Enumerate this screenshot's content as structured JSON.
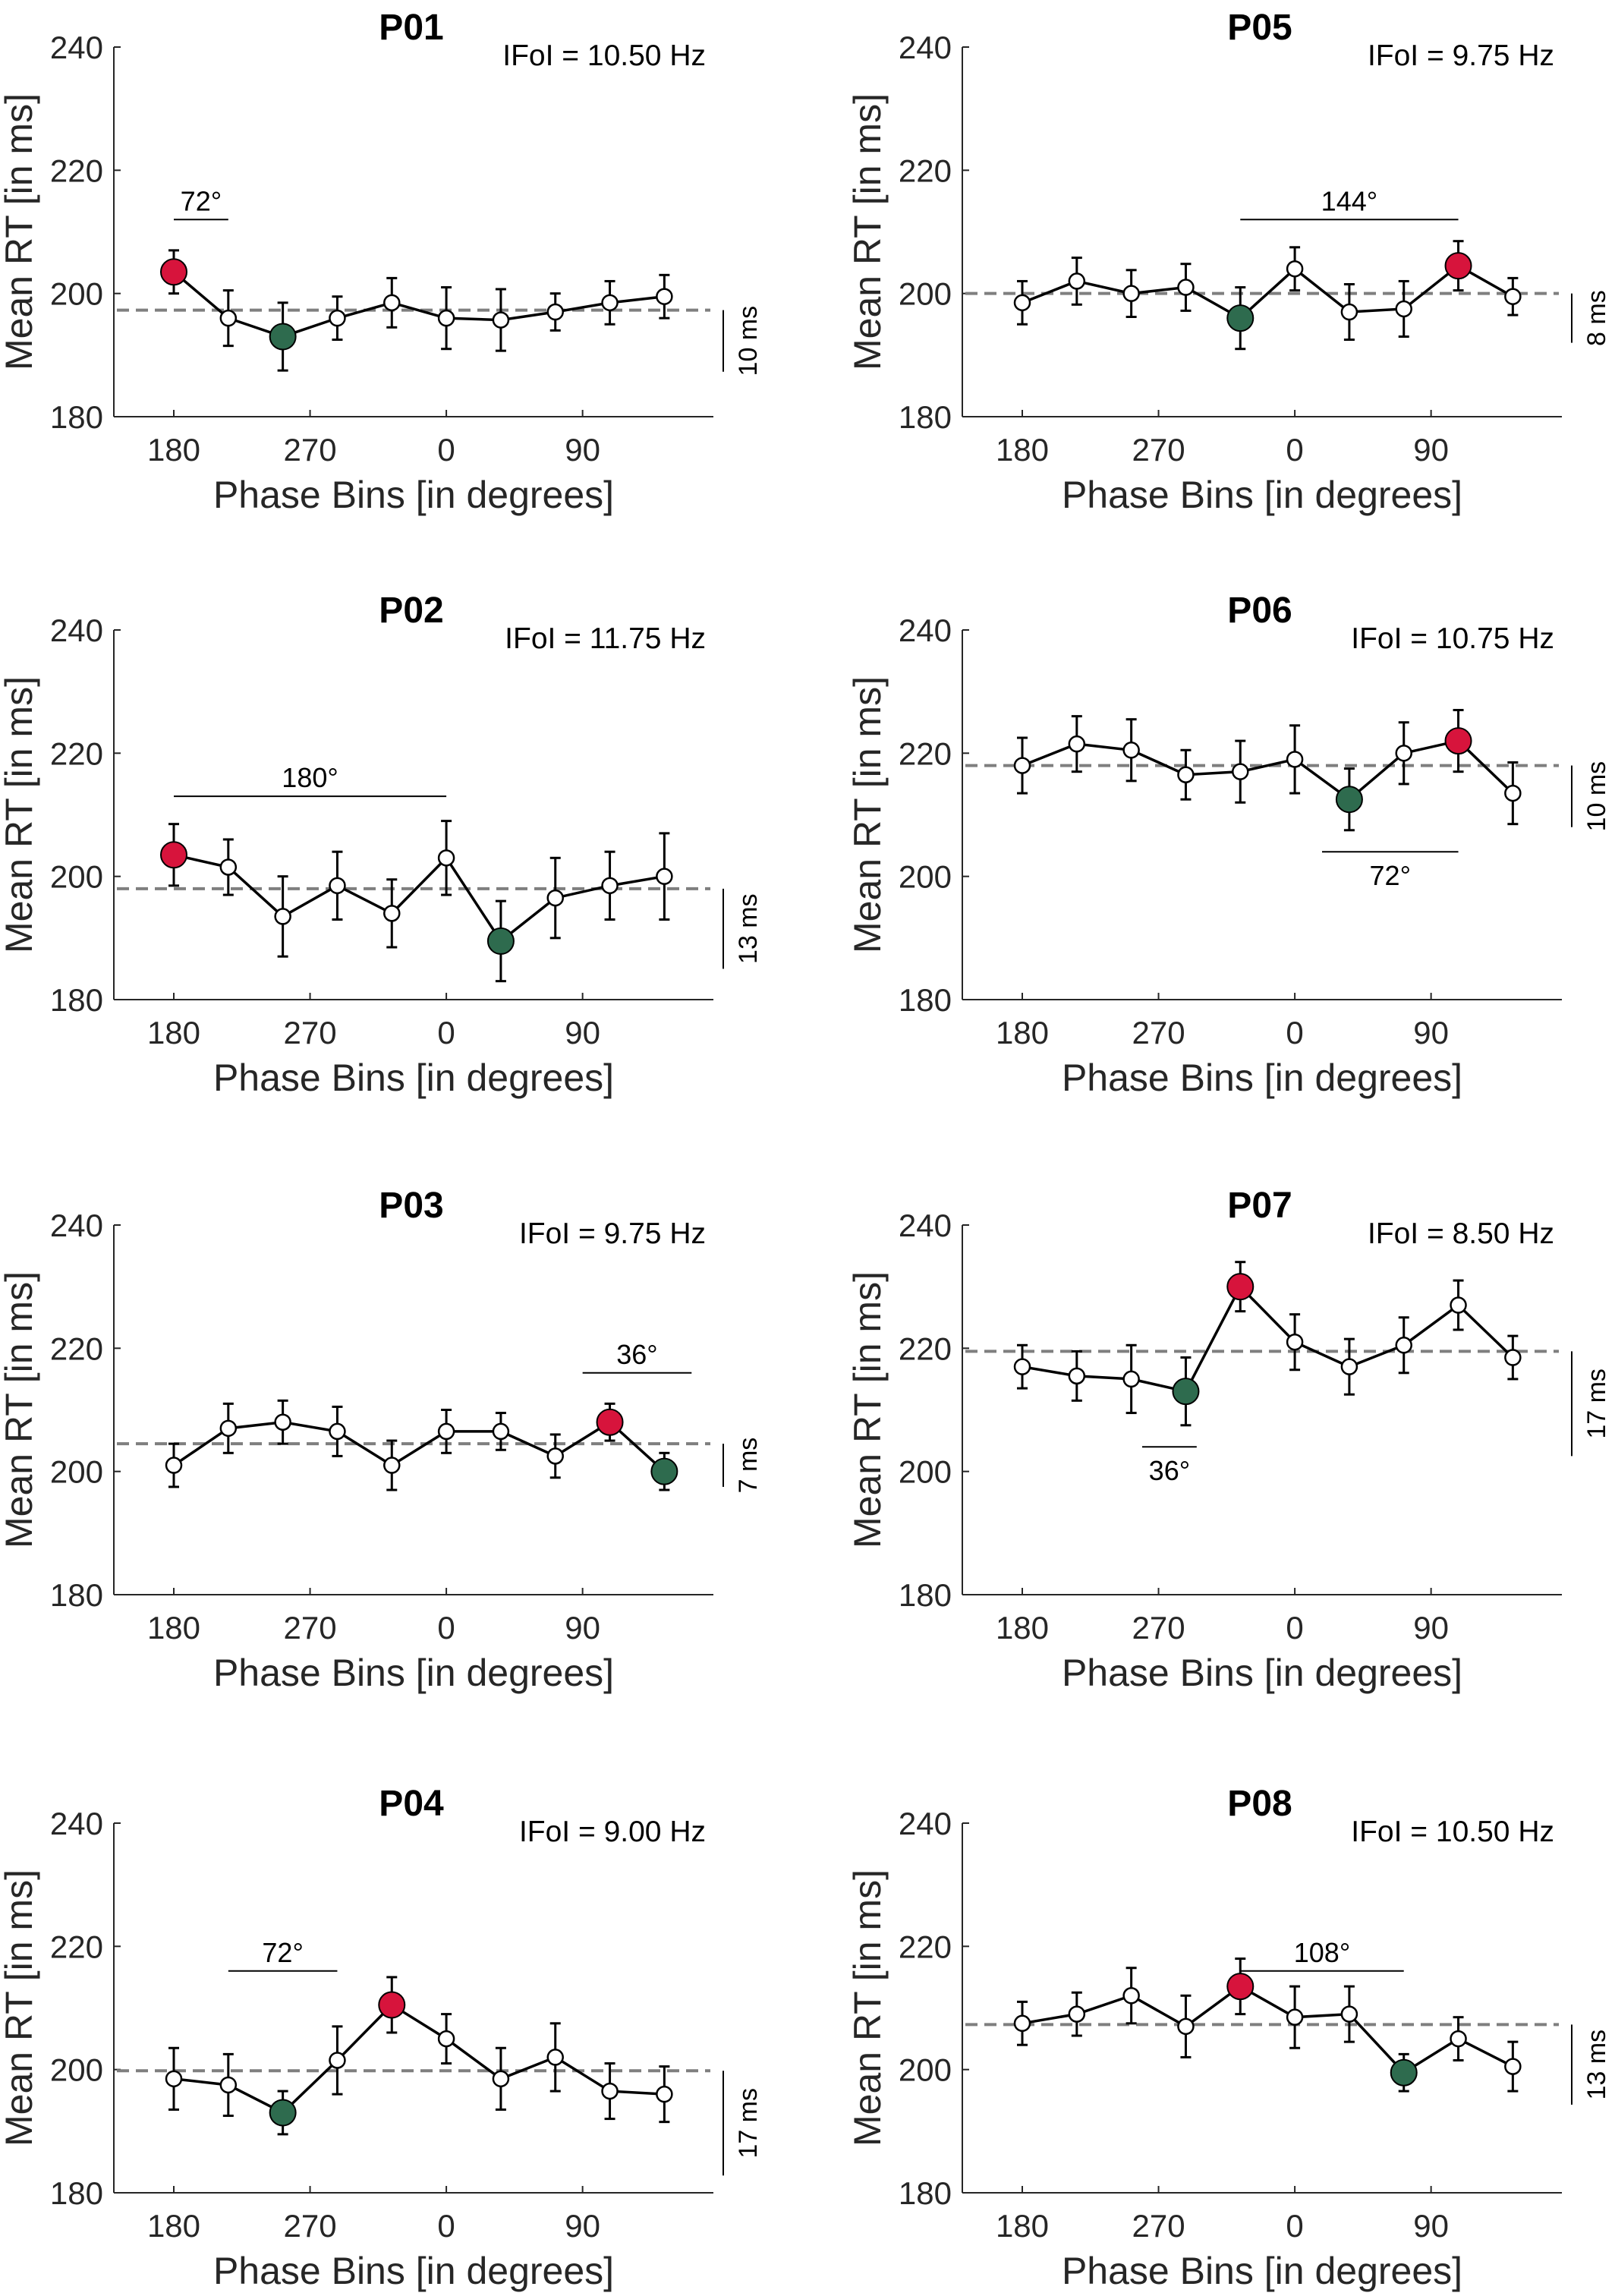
{
  "colors": {
    "max_marker": "#D7143C",
    "min_marker": "#2E6B4E",
    "line": "#000000",
    "dashed_mean": "#7F7F7F",
    "axis": "#262626"
  },
  "shared": {
    "xlabel": "Phase Bins [in degrees]",
    "ylabel": "Mean RT [in ms]",
    "yticks": [
      180,
      200,
      220,
      240
    ],
    "xticks": [
      {
        "pos": 2,
        "label": "180"
      },
      {
        "pos": 4.5,
        "label": "270"
      },
      {
        "pos": 7,
        "label": "0"
      },
      {
        "pos": 9.5,
        "label": "90"
      }
    ],
    "xlim": [
      0.9,
      11.9
    ],
    "ylim": [
      180,
      240
    ]
  },
  "chart_data": [
    {
      "type": "line",
      "title": "P01",
      "ifoi": "IFoI = 10.50 Hz",
      "mean": 197.3,
      "scalebar_label": "10 ms",
      "scalebar_range": [
        187.3,
        197.3
      ],
      "bracket_label": "72°",
      "bracket_x": [
        2,
        3
      ],
      "bracket_y": 212,
      "bracket_label_pos": "above",
      "values": [
        203.5,
        196,
        193,
        196,
        198.5,
        196,
        195.7,
        197,
        198.5,
        199.5
      ],
      "errors": [
        3.5,
        4.5,
        5.5,
        3.5,
        4,
        5,
        5,
        3,
        3.5,
        3.5
      ],
      "max_index": 0,
      "min_index": 2
    },
    {
      "type": "line",
      "title": "P05",
      "ifoi": "IFoI = 9.75 Hz",
      "mean": 200,
      "scalebar_label": "8 ms",
      "scalebar_range": [
        192,
        200
      ],
      "bracket_label": "144°",
      "bracket_x": [
        6,
        10
      ],
      "bracket_y": 212,
      "bracket_label_pos": "above",
      "values": [
        198.5,
        202,
        200,
        201,
        196,
        204,
        197,
        197.5,
        204.5,
        199.5
      ],
      "errors": [
        3.5,
        3.8,
        3.8,
        3.8,
        5,
        3.5,
        4.5,
        4.5,
        4,
        3
      ],
      "max_index": 8,
      "min_index": 4
    },
    {
      "type": "line",
      "title": "P02",
      "ifoi": "IFoI = 11.75 Hz",
      "mean": 198,
      "scalebar_label": "13 ms",
      "scalebar_range": [
        185,
        198
      ],
      "bracket_label": "180°",
      "bracket_x": [
        2,
        7
      ],
      "bracket_y": 213,
      "bracket_label_pos": "above",
      "values": [
        203.5,
        201.5,
        193.5,
        198.5,
        194,
        203,
        189.5,
        196.5,
        198.5,
        200
      ],
      "errors": [
        5,
        4.5,
        6.5,
        5.5,
        5.5,
        6,
        6.5,
        6.5,
        5.5,
        7
      ],
      "max_index": 0,
      "min_index": 6
    },
    {
      "type": "line",
      "title": "P06",
      "ifoi": "IFoI = 10.75 Hz",
      "mean": 218,
      "scalebar_label": "10 ms",
      "scalebar_range": [
        208,
        218
      ],
      "bracket_label": "72°",
      "bracket_x": [
        7.5,
        10
      ],
      "bracket_y": 204,
      "bracket_label_pos": "below",
      "values": [
        218,
        221.5,
        220.5,
        216.5,
        217,
        219,
        212.5,
        220,
        222,
        213.5
      ],
      "errors": [
        4.5,
        4.5,
        5,
        4,
        5,
        5.5,
        5,
        5,
        5,
        5
      ],
      "max_index": 8,
      "min_index": 6
    },
    {
      "type": "line",
      "title": "P03",
      "ifoi": "IFoI = 9.75 Hz",
      "mean": 204.5,
      "scalebar_label": "7 ms",
      "scalebar_range": [
        197.5,
        204.5
      ],
      "bracket_label": "36°",
      "bracket_x": [
        9.5,
        11.5
      ],
      "bracket_y": 216,
      "bracket_label_pos": "above",
      "values": [
        201,
        207,
        208,
        206.5,
        201,
        206.5,
        206.5,
        202.5,
        208,
        200
      ],
      "errors": [
        3.5,
        4,
        3.5,
        4,
        4,
        3.5,
        3,
        3.5,
        3,
        3
      ],
      "max_index": 8,
      "min_index": 9
    },
    {
      "type": "line",
      "title": "P07",
      "ifoi": "IFoI = 8.50 Hz",
      "mean": 219.5,
      "scalebar_label": "17 ms",
      "scalebar_range": [
        202.5,
        219.5
      ],
      "bracket_label": "36°",
      "bracket_x": [
        4.2,
        5.2
      ],
      "bracket_y": 204,
      "bracket_label_pos": "below",
      "values": [
        217,
        215.5,
        215,
        213,
        230,
        221,
        217,
        220.5,
        227,
        218.5
      ],
      "errors": [
        3.5,
        4,
        5.5,
        5.5,
        4,
        4.5,
        4.5,
        4.5,
        4,
        3.5
      ],
      "max_index": 4,
      "min_index": 3
    },
    {
      "type": "line",
      "title": "P04",
      "ifoi": "IFoI = 9.00 Hz",
      "mean": 199.8,
      "scalebar_label": "17 ms",
      "scalebar_range": [
        182.8,
        199.8
      ],
      "bracket_label": "72°",
      "bracket_x": [
        3,
        5
      ],
      "bracket_y": 216,
      "bracket_label_pos": "above",
      "values": [
        198.5,
        197.5,
        193,
        201.5,
        210.5,
        205,
        198.5,
        202,
        196.5,
        196
      ],
      "errors": [
        5,
        5,
        3.5,
        5.5,
        4.5,
        4,
        5,
        5.5,
        4.5,
        4.5
      ],
      "max_index": 4,
      "min_index": 2
    },
    {
      "type": "line",
      "title": "P08",
      "ifoi": "IFoI = 10.50 Hz",
      "mean": 207.3,
      "scalebar_label": "13 ms",
      "scalebar_range": [
        194.3,
        207.3
      ],
      "bracket_label": "108°",
      "bracket_x": [
        6,
        9
      ],
      "bracket_y": 216,
      "bracket_label_pos": "above",
      "values": [
        207.5,
        209,
        212,
        207,
        213.5,
        208.5,
        209,
        199.5,
        205,
        200.5
      ],
      "errors": [
        3.5,
        3.5,
        4.5,
        5,
        4.5,
        5,
        4.5,
        3,
        3.5,
        4
      ],
      "max_index": 4,
      "min_index": 7
    }
  ]
}
